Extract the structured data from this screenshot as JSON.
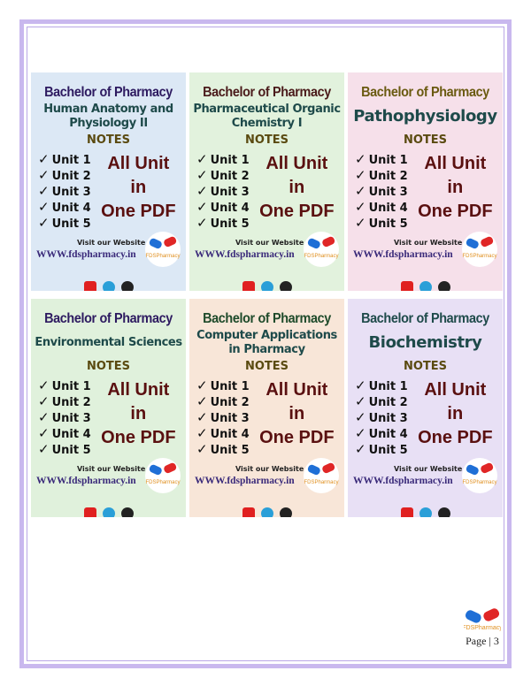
{
  "cards": [
    {
      "header": "Bachelor of Pharmacy",
      "subject": "Human Anatomy and Physiology II",
      "notes": "NOTES",
      "units": [
        "Unit 1",
        "Unit 2",
        "Unit 3",
        "Unit 4",
        "Unit 5"
      ],
      "all": [
        "All Unit",
        "in",
        "One PDF"
      ],
      "visit": "Visit our Website",
      "site": "WWW.fdspharmacy.in",
      "bg": "#dce8f5",
      "header_color": "#2d1a60"
    },
    {
      "header": "Bachelor of Pharmacy",
      "subject": "Pharmaceutical Organic Chemistry I",
      "notes": "NOTES",
      "units": [
        "Unit 1",
        "Unit 2",
        "Unit 3",
        "Unit 4",
        "Unit 5"
      ],
      "all": [
        "All Unit",
        "in",
        "One PDF"
      ],
      "visit": "Visit our Website",
      "site": "WWW.fdspharmacy.in",
      "bg": "#e2f2dd",
      "header_color": "#4a1a1a"
    },
    {
      "header": "Bachelor of Pharmacy",
      "subject": "Pathophysiology",
      "notes": "NOTES",
      "units": [
        "Unit 1",
        "Unit 2",
        "Unit 3",
        "Unit 4",
        "Unit 5"
      ],
      "all": [
        "All Unit",
        "in",
        "One PDF"
      ],
      "visit": "Visit our Website",
      "site": "WWW.fdspharmacy.in",
      "bg": "#f6e0ea",
      "header_color": "#6a5a10"
    },
    {
      "header": "Bachelor of Pharmacy",
      "subject": "Environmental Sciences",
      "notes": "NOTES",
      "units": [
        "Unit 1",
        "Unit 2",
        "Unit 3",
        "Unit 4",
        "Unit 5"
      ],
      "all": [
        "All Unit",
        "in",
        "One PDF"
      ],
      "visit": "Visit our Website",
      "site": "WWW.fdspharmacy.in",
      "bg": "#e0f1dc",
      "header_color": "#2d1a60"
    },
    {
      "header": "Bachelor of Pharmacy",
      "subject": "Computer Applications in Pharmacy",
      "notes": "NOTES",
      "units": [
        "Unit 1",
        "Unit 2",
        "Unit 3",
        "Unit 4",
        "Unit 5"
      ],
      "all": [
        "All Unit",
        "in",
        "One PDF"
      ],
      "visit": "Visit our Website",
      "site": "WWW.fdspharmacy.in",
      "bg": "#f8e6d8",
      "header_color": "#1e4a2a"
    },
    {
      "header": "Bachelor of Pharmacy",
      "subject": "Biochemistry",
      "notes": "NOTES",
      "units": [
        "Unit 1",
        "Unit 2",
        "Unit 3",
        "Unit 4",
        "Unit 5"
      ],
      "all": [
        "All Unit",
        "in",
        "One PDF"
      ],
      "visit": "Visit our Website",
      "site": "WWW.fdspharmacy.in",
      "bg": "#e8e0f5",
      "header_color": "#1e4a4a"
    }
  ],
  "logo_text": "FDSPharmacy",
  "page": {
    "label": "Page | 3"
  }
}
